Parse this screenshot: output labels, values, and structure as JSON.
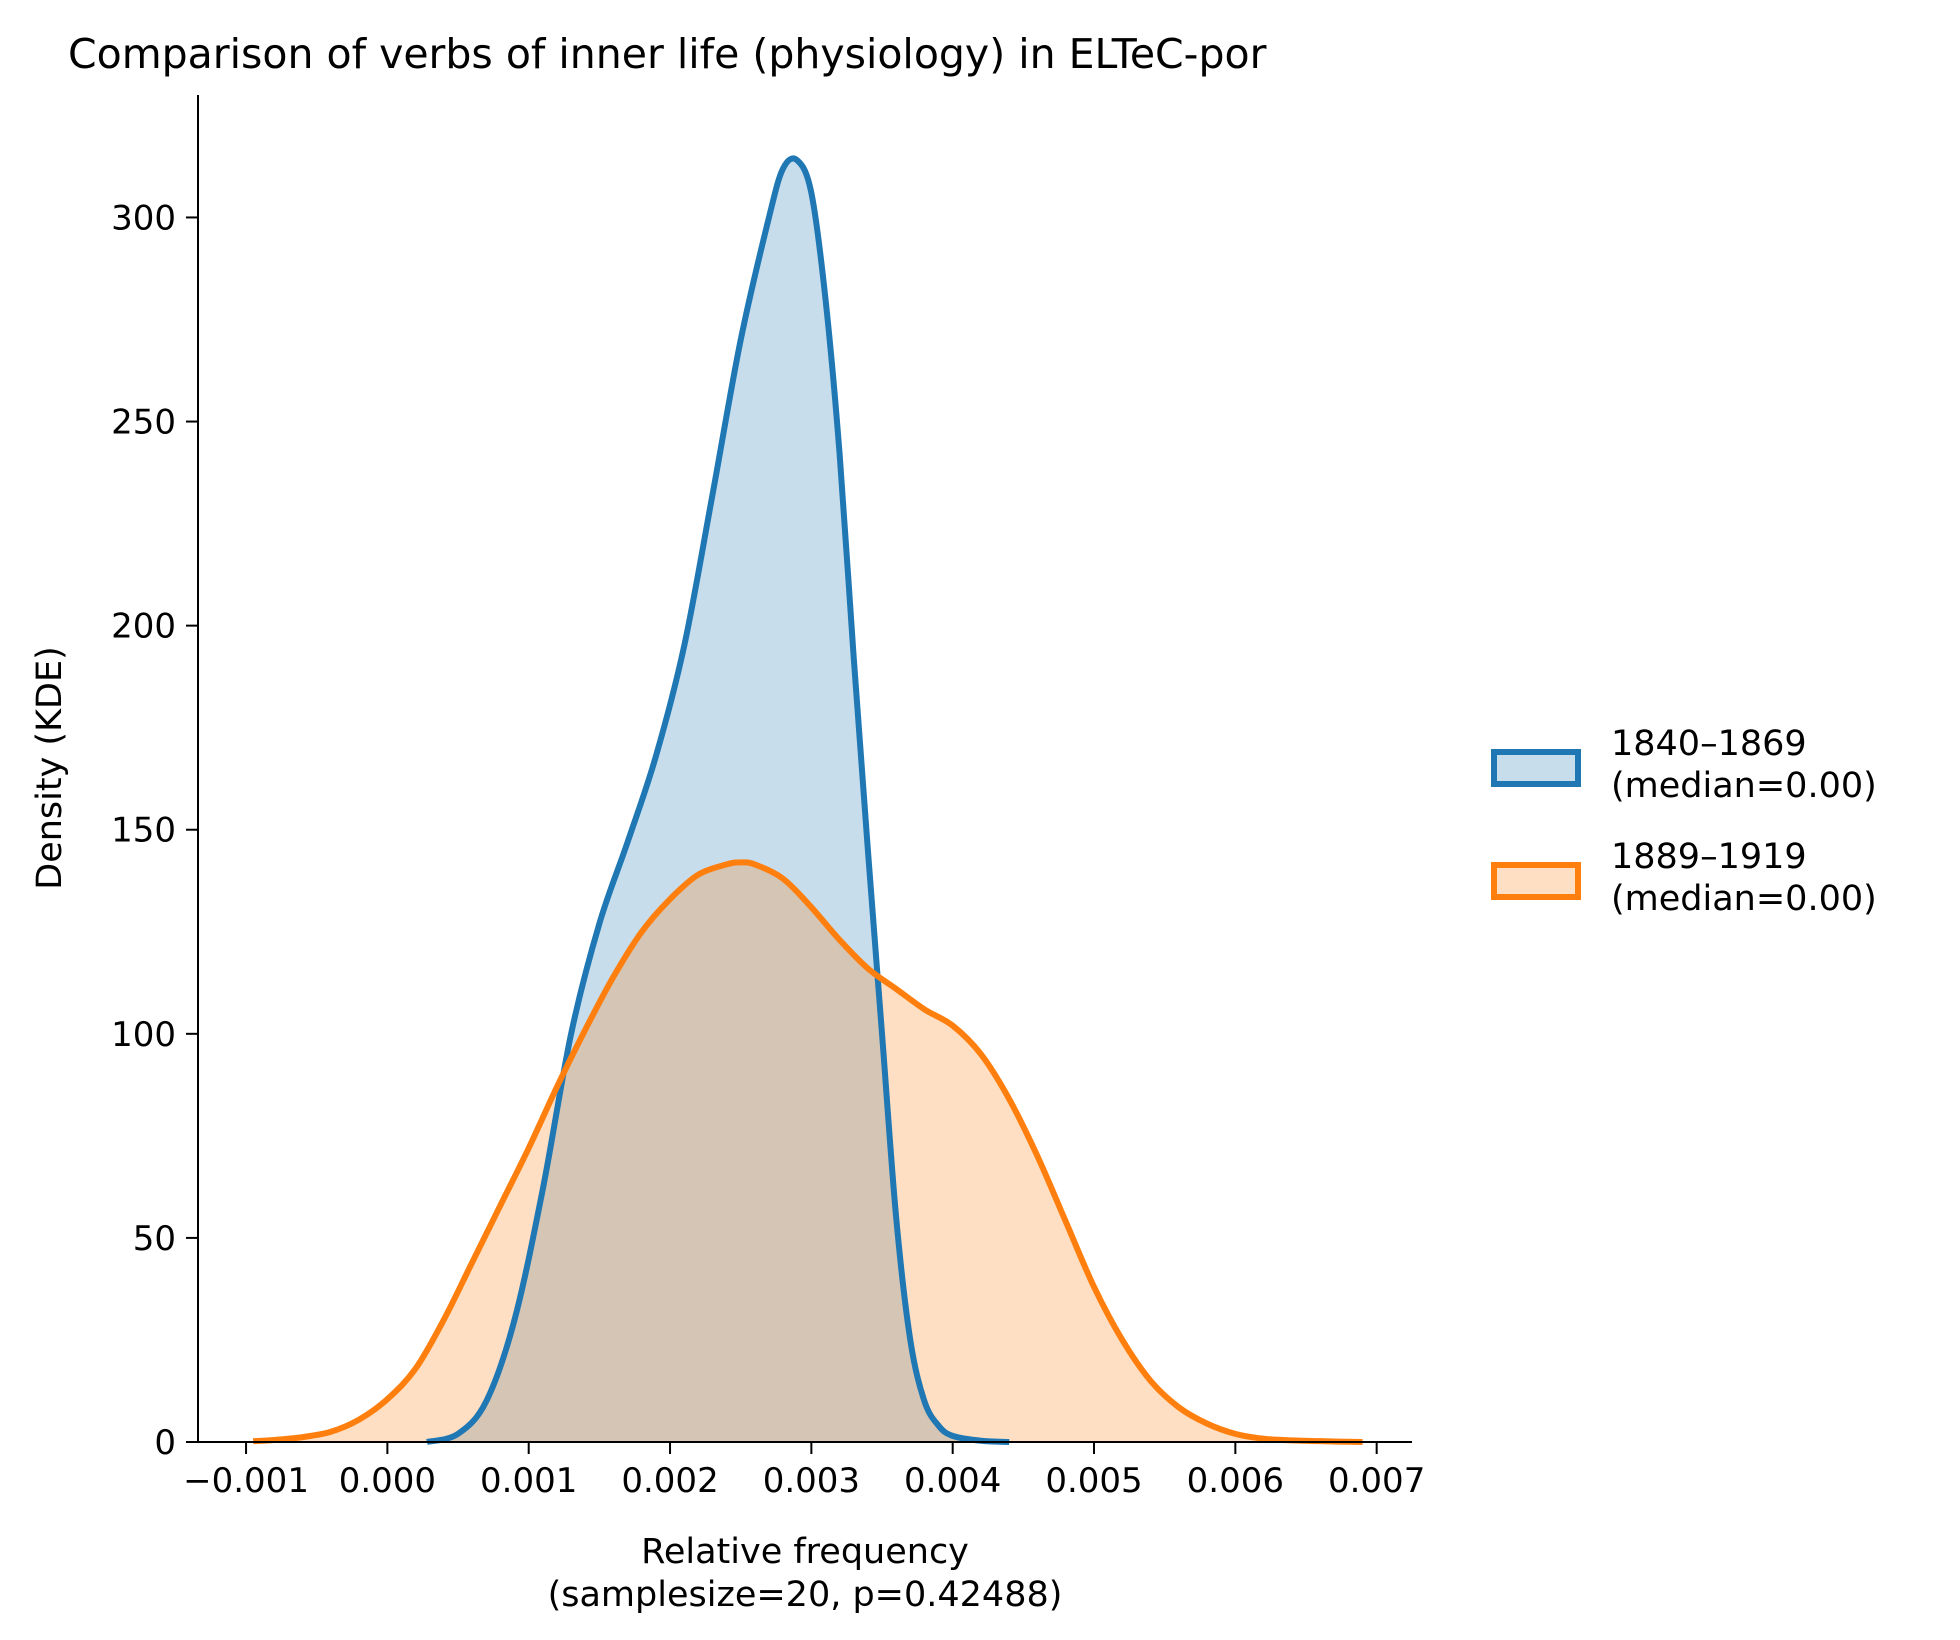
{
  "chart_data": {
    "type": "area",
    "title": "Comparison of verbs of inner life (physiology) in ELTeC-por",
    "xlabel": "Relative frequency",
    "xlabel_sub": "(samplesize=20, p=0.42488)",
    "ylabel": "Density (KDE)",
    "xlim": [
      -0.00134,
      0.00725
    ],
    "ylim": [
      0,
      330
    ],
    "xticks": [
      -0.001,
      0.0,
      0.001,
      0.002,
      0.003,
      0.004,
      0.005,
      0.006,
      0.007
    ],
    "xtick_labels": [
      "−0.001",
      "0.000",
      "0.001",
      "0.002",
      "0.003",
      "0.004",
      "0.005",
      "0.006",
      "0.007"
    ],
    "yticks": [
      0,
      50,
      100,
      150,
      200,
      250,
      300
    ],
    "ytick_labels": [
      "0",
      "50",
      "100",
      "150",
      "200",
      "250",
      "300"
    ],
    "grid": false,
    "legend_position": "right",
    "series": [
      {
        "name": "1840–1869",
        "name_sub": "(median=0.00)",
        "color": "#1f77b4",
        "x": [
          0.00028,
          0.0005,
          0.0007,
          0.0009,
          0.0011,
          0.0013,
          0.0015,
          0.0017,
          0.0019,
          0.0021,
          0.0023,
          0.0025,
          0.0027,
          0.0028,
          0.0029,
          0.003,
          0.0031,
          0.0032,
          0.0033,
          0.0034,
          0.0035,
          0.0036,
          0.0037,
          0.0038,
          0.0039,
          0.004,
          0.0042,
          0.0044
        ],
        "y": [
          0,
          2,
          10,
          30,
          62,
          100,
          127,
          147,
          168,
          195,
          232,
          270,
          300,
          312,
          314,
          306,
          280,
          242,
          192,
          145,
          100,
          55,
          25,
          10,
          4,
          1.5,
          0.3,
          0
        ]
      },
      {
        "name": "1889–1919",
        "name_sub": "(median=0.00)",
        "color": "#ff7f0e",
        "x": [
          -0.00095,
          -0.0008,
          -0.0006,
          -0.0004,
          -0.0002,
          0.0,
          0.0002,
          0.0004,
          0.0006,
          0.0008,
          0.001,
          0.0012,
          0.0014,
          0.0016,
          0.0018,
          0.002,
          0.0022,
          0.0024,
          0.0025,
          0.0026,
          0.0028,
          0.003,
          0.0032,
          0.0034,
          0.0036,
          0.0038,
          0.004,
          0.0042,
          0.0044,
          0.0046,
          0.0048,
          0.005,
          0.0052,
          0.0054,
          0.0056,
          0.0058,
          0.006,
          0.0062,
          0.0064,
          0.0066,
          0.0069
        ],
        "y": [
          0.2,
          0.5,
          1.2,
          2.5,
          5.5,
          10.5,
          18,
          30,
          44,
          58,
          72,
          87,
          101,
          114,
          125,
          133,
          139,
          141.5,
          142,
          141.5,
          138,
          131,
          123,
          116,
          111,
          106,
          102,
          95,
          84,
          70,
          54,
          38,
          25,
          15,
          8.5,
          4.5,
          2,
          0.8,
          0.4,
          0.2,
          0
        ]
      }
    ]
  }
}
